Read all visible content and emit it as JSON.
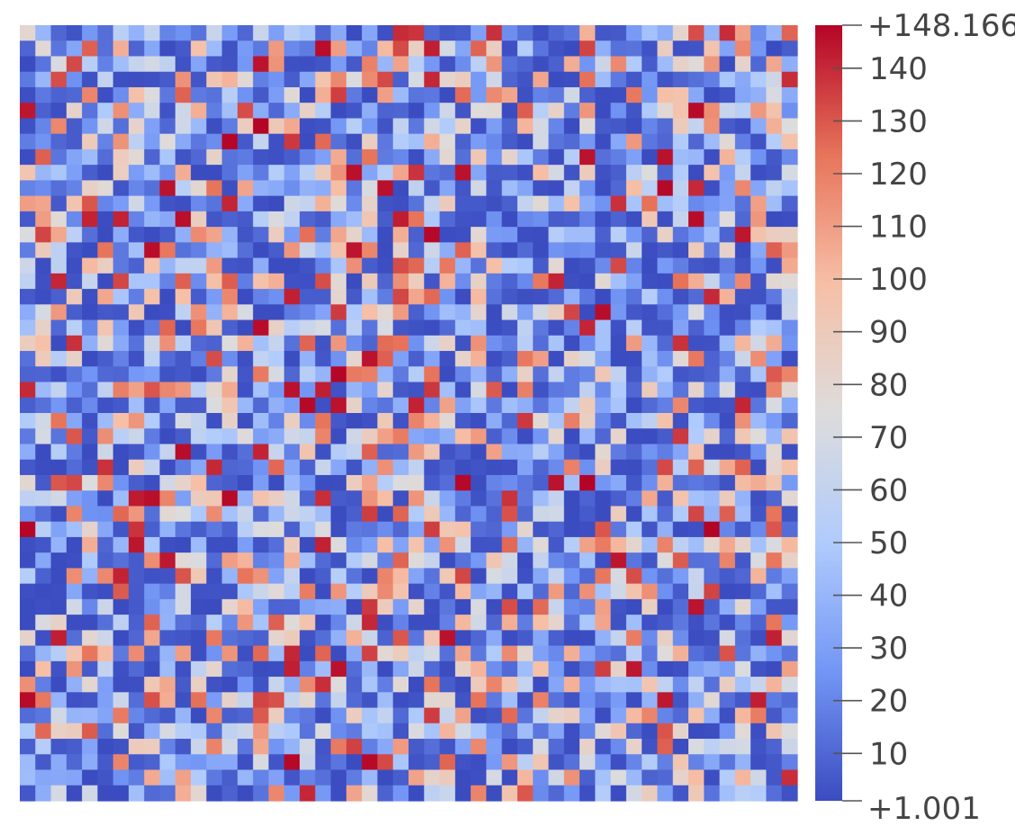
{
  "chart_data": {
    "type": "heatmap",
    "title": "",
    "xlabel": "",
    "ylabel": "",
    "grid": false,
    "legend": "right",
    "rows": 50,
    "cols": 50,
    "value_range": [
      1.001,
      148.166
    ],
    "colormap": "cool-to-warm",
    "colormap_stops": [
      "#3b4cc0",
      "#7396f5",
      "#b0cbfc",
      "#dddcdc",
      "#f6bfa6",
      "#e7745b",
      "#b40426"
    ],
    "colorbar": {
      "max_label": "+148.166",
      "min_label": "+1.001",
      "ticks": [
        140,
        130,
        120,
        110,
        100,
        90,
        80,
        70,
        60,
        50,
        40,
        30,
        20,
        10
      ],
      "tick_labels": [
        "140",
        "130",
        "120",
        "110",
        "100",
        "90",
        "80",
        "70",
        "60",
        "50",
        "40",
        "30",
        "20",
        "10"
      ]
    },
    "cell_values_note_free": true,
    "seed": 1337
  }
}
